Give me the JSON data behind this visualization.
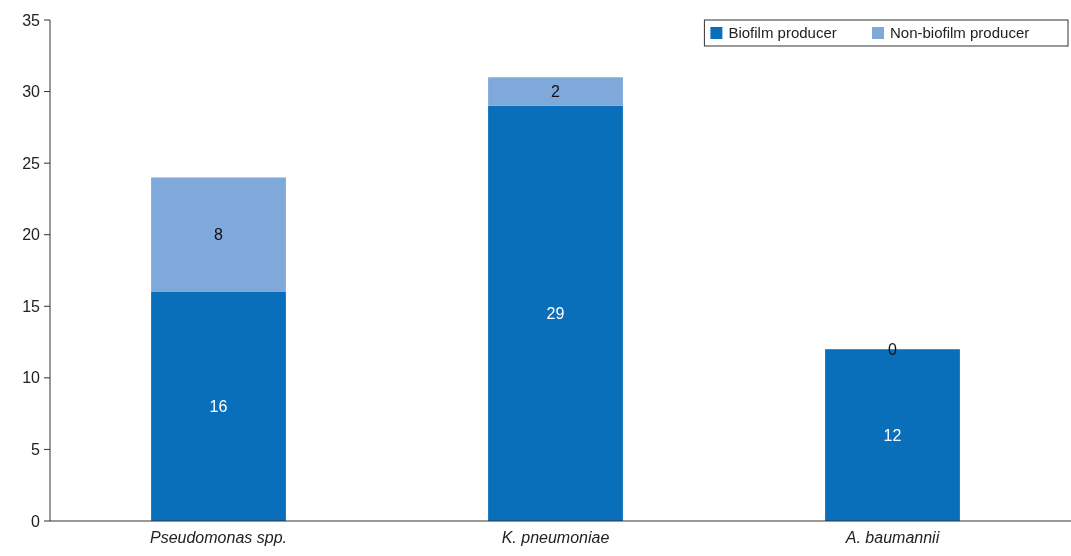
{
  "chart_data": {
    "type": "bar",
    "stacked": true,
    "categories": [
      "Pseudomonas spp.",
      "K. pneumoniae",
      "A. baumannii"
    ],
    "series": [
      {
        "name": "Biofilm producer",
        "color": "#0a6fba",
        "values": [
          16,
          29,
          12
        ]
      },
      {
        "name": "Non-biofilm producer",
        "color": "#7fa8db",
        "values": [
          8,
          2,
          0
        ]
      }
    ],
    "ylim": [
      0,
      35
    ],
    "yticks": [
      0,
      5,
      10,
      15,
      20,
      25,
      30,
      35
    ],
    "grid": false,
    "legend": "top right",
    "data_labels": true
  }
}
